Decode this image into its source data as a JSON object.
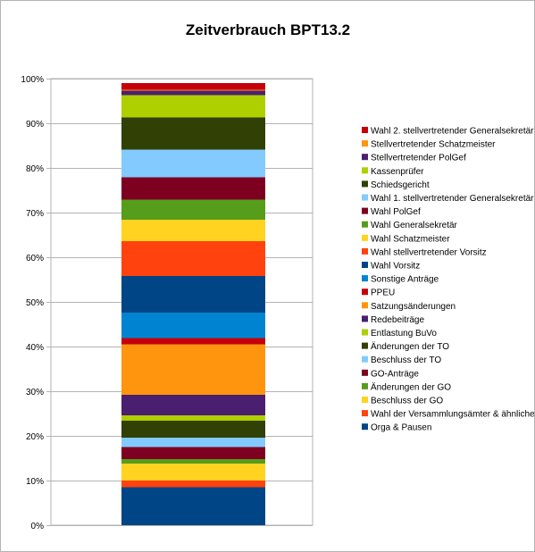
{
  "chart_data": {
    "type": "bar",
    "stacked": true,
    "percent_stacked": true,
    "title": "Zeitverbrauch BPT13.2",
    "xlabel": "",
    "ylabel": "",
    "categories": [
      ""
    ],
    "ylim": [
      0,
      100
    ],
    "y_ticks": [
      "0%",
      "10%",
      "20%",
      "30%",
      "40%",
      "50%",
      "60%",
      "70%",
      "80%",
      "90%",
      "100%"
    ],
    "grid": true,
    "legend_position": "right",
    "series": [
      {
        "name": "Orga & Pausen",
        "values": [
          8.5
        ],
        "color": "#004586"
      },
      {
        "name": "Wahl der Versammlungsämter & ähnliches",
        "values": [
          1.5
        ],
        "color": "#ff420e"
      },
      {
        "name": "Beschluss der GO",
        "values": [
          3.8
        ],
        "color": "#ffd320"
      },
      {
        "name": "Änderungen der GO",
        "values": [
          1.0
        ],
        "color": "#579d1c"
      },
      {
        "name": "GO-Anträge",
        "values": [
          2.7
        ],
        "color": "#7e0021"
      },
      {
        "name": "Beschluss der TO",
        "values": [
          2.1
        ],
        "color": "#83caff"
      },
      {
        "name": "Änderungen der TO",
        "values": [
          3.8
        ],
        "color": "#314004"
      },
      {
        "name": "Entlastung BuVo",
        "values": [
          1.2
        ],
        "color": "#aecf00"
      },
      {
        "name": "Redebeiträge",
        "values": [
          4.6
        ],
        "color": "#4b1f6f"
      },
      {
        "name": "Satzungsänderungen",
        "values": [
          11.3
        ],
        "color": "#ff950e"
      },
      {
        "name": "PPEU",
        "values": [
          1.4
        ],
        "color": "#c5000b"
      },
      {
        "name": "Sonstige Anträge",
        "values": [
          5.7
        ],
        "color": "#0084d1"
      },
      {
        "name": "Wahl Vorsitz",
        "values": [
          8.2
        ],
        "color": "#004586"
      },
      {
        "name": "Wahl stellvertretender Vorsitz",
        "values": [
          7.8
        ],
        "color": "#ff420e"
      },
      {
        "name": "Wahl Schatzmeister",
        "values": [
          4.8
        ],
        "color": "#ffd320"
      },
      {
        "name": "Wahl Generalsekretär",
        "values": [
          4.5
        ],
        "color": "#579d1c"
      },
      {
        "name": "Wahl PolGef",
        "values": [
          5.0
        ],
        "color": "#7e0021"
      },
      {
        "name": "Wahl 1. stellvertretender Generalsekretär",
        "values": [
          6.2
        ],
        "color": "#83caff"
      },
      {
        "name": "Schiedsgericht",
        "values": [
          7.2
        ],
        "color": "#314004"
      },
      {
        "name": "Kassenprüfer",
        "values": [
          5.0
        ],
        "color": "#aecf00"
      },
      {
        "name": "Stellvertretender PolGef",
        "values": [
          1.0
        ],
        "color": "#4b1f6f"
      },
      {
        "name": "Stellvertretender Schatzmeister",
        "values": [
          0.2
        ],
        "color": "#ff950e"
      },
      {
        "name": "Wahl 2. stellvertretender Generalsekretär",
        "values": [
          1.5
        ],
        "color": "#c5000b"
      }
    ]
  }
}
